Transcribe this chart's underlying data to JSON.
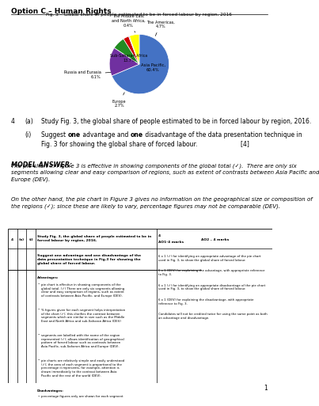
{
  "title": "Option C – Human Rights",
  "chart_title": "Fig. 3 – Global share of people estimated to be in forced labour by region, 2016",
  "wedge_values": [
    60.4,
    13.7,
    6.1,
    2.7,
    0.4,
    4.7
  ],
  "wedge_colors": [
    "#4472C4",
    "#7030A0",
    "#228B22",
    "#CC0000",
    "#6633AA",
    "#FFFF00"
  ],
  "question_num": "4",
  "question_part": "(a)",
  "question_sub": "(i)",
  "question_text": "Study Fig. 3, the global share of people estimated to be in forced labour by region, 2016.",
  "question_sub_text_l1": "Suggest  one advantage and  one  disadvantage of the data presentation technique in",
  "question_sub_text_l2": "Fig. 3 for showing the global share of forced labour.                                    [4]",
  "model_answer_heading": "MODEL ANSWER:",
  "model_answer_p1": "The pie chart in Figure 3 is effective in showing components of the global total (✓).  There are only six segments allowing clear and easy comparison of regions, such as extent of contrasts between Asia Pacific and Europe (DEV).",
  "model_answer_p2": "On the other hand, the pie chart in Figure 3 gives no information on the geographical size or composition of the regions (✓); since these are likely to vary, percentage figures may not be comparable (DEV).",
  "background_color": "#FFFFFF",
  "page_num": "1"
}
